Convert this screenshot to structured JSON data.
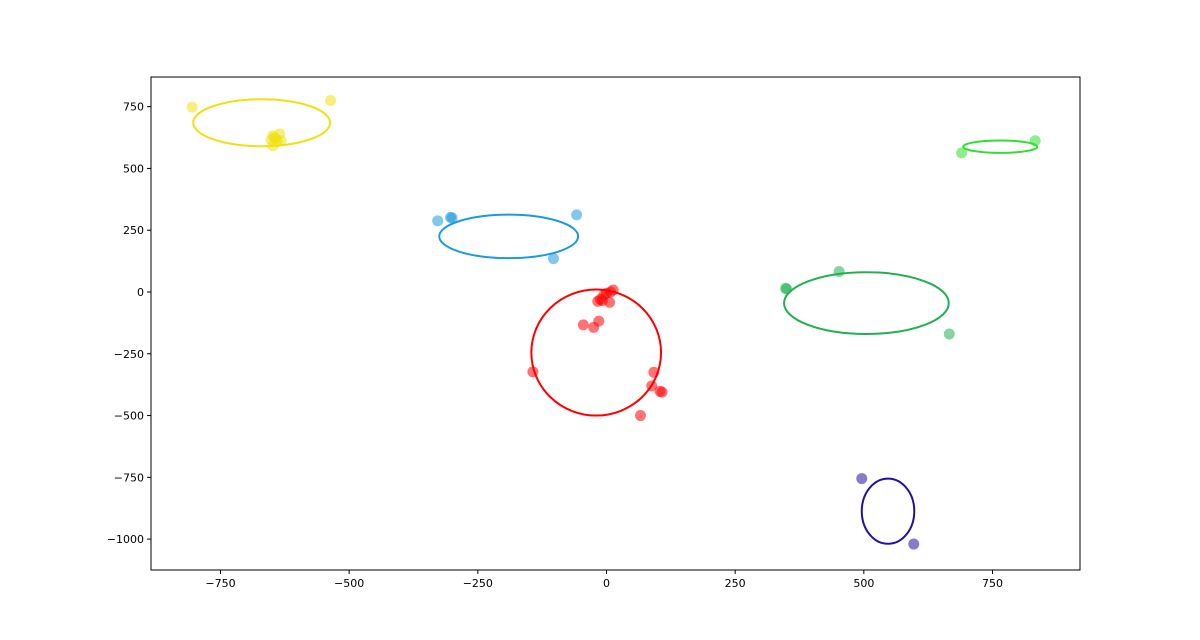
{
  "chart_data": {
    "type": "scatter",
    "title": "",
    "xlabel": "",
    "ylabel": "",
    "xlim": [
      -885,
      920
    ],
    "ylim": [
      -1125,
      870
    ],
    "xticks": [
      -750,
      -500,
      -250,
      0,
      250,
      500,
      750
    ],
    "yticks": [
      750,
      500,
      250,
      0,
      -250,
      -500,
      -750,
      -1000
    ],
    "xtick_labels": [
      "−750",
      "−500",
      "−250",
      "0",
      "250",
      "500",
      "750"
    ],
    "ytick_labels": [
      "750",
      "500",
      "250",
      "0",
      "−250",
      "−500",
      "−750",
      "−1000"
    ],
    "grid": false,
    "legend": "none",
    "series": [
      {
        "color": "#f0e010",
        "points": [
          [
            -805,
            748
          ],
          [
            -536,
            775
          ],
          [
            -648,
            632
          ],
          [
            -635,
            640
          ],
          [
            -643,
            622
          ],
          [
            -652,
            615
          ],
          [
            -640,
            608
          ],
          [
            -632,
            612
          ],
          [
            -648,
            592
          ],
          [
            -645,
            625
          ]
        ],
        "ellipse": {
          "cx": -670,
          "cy": 685,
          "rx": 133,
          "ry": 95
        }
      },
      {
        "color": "#1a9be0",
        "points": [
          [
            -328,
            288
          ],
          [
            -303,
            302
          ],
          [
            -300,
            300
          ],
          [
            -58,
            312
          ],
          [
            -103,
            135
          ]
        ],
        "ellipse": {
          "cx": -190,
          "cy": 225,
          "rx": 135,
          "ry": 88
        }
      },
      {
        "color": "#ff0000",
        "points": [
          [
            -143,
            -323
          ],
          [
            -45,
            -133
          ],
          [
            -25,
            -143
          ],
          [
            -15,
            -118
          ],
          [
            -17,
            -38
          ],
          [
            -12,
            -30
          ],
          [
            -8,
            -35
          ],
          [
            -5,
            -12
          ],
          [
            0,
            -5
          ],
          [
            6,
            -42
          ],
          [
            8,
            0
          ],
          [
            13,
            8
          ],
          [
            92,
            -325
          ],
          [
            88,
            -380
          ],
          [
            108,
            -405
          ],
          [
            104,
            -402
          ],
          [
            66,
            -500
          ]
        ],
        "ellipse": {
          "cx": -20,
          "cy": -245,
          "rx": 126,
          "ry": 255
        }
      },
      {
        "color": "#22b050",
        "points": [
          [
            348,
            15
          ],
          [
            350,
            12
          ],
          [
            452,
            83
          ],
          [
            666,
            -170
          ]
        ],
        "ellipse": {
          "cx": 505,
          "cy": -45,
          "rx": 160,
          "ry": 125
        }
      },
      {
        "color": "#30e030",
        "points": [
          [
            690,
            563
          ],
          [
            833,
            612
          ]
        ],
        "ellipse": {
          "cx": 765,
          "cy": 588,
          "rx": 72,
          "ry": 25
        }
      },
      {
        "color": "#2210a0",
        "points": [
          [
            496,
            -755
          ],
          [
            597,
            -1020
          ]
        ],
        "ellipse": {
          "cx": 547,
          "cy": -887,
          "rx": 51,
          "ry": 132
        }
      }
    ]
  }
}
